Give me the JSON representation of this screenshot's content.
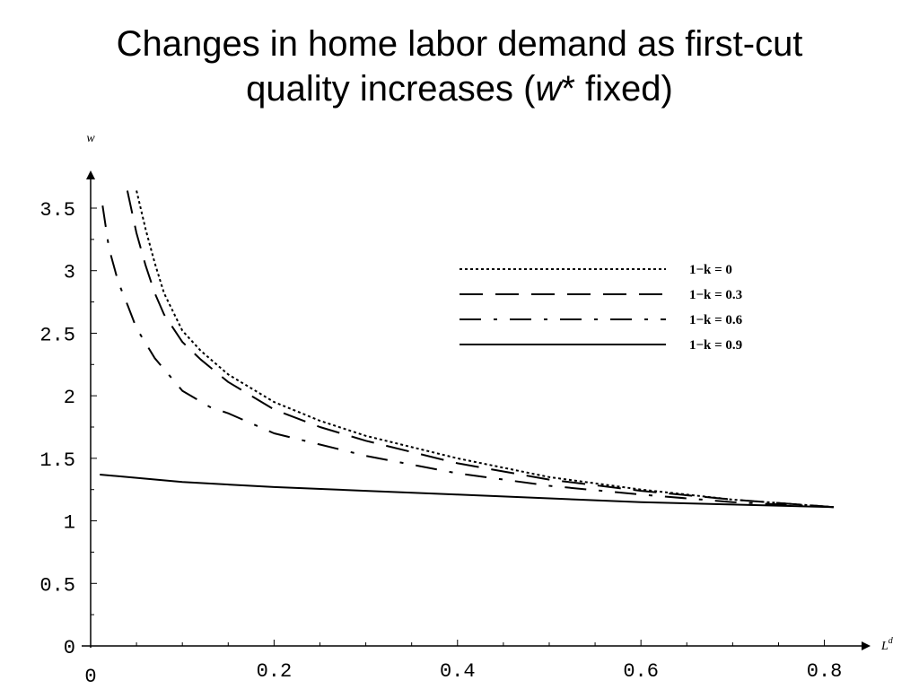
{
  "slide": {
    "title_line1": "Changes in home labor demand as first-cut",
    "title_line2_pre": "quality increases (",
    "title_line2_var": "w",
    "title_line2_post": "* fixed)"
  },
  "chart_data": {
    "type": "line",
    "xlabel": "L",
    "xlabel_sup": "d",
    "ylabel": "w",
    "xlim": [
      0,
      0.82
    ],
    "ylim": [
      0,
      3.7
    ],
    "x_ticks": [
      {
        "value": 0,
        "label": "0"
      },
      {
        "value": 0.2,
        "label": "0.2"
      },
      {
        "value": 0.4,
        "label": "0.4"
      },
      {
        "value": 0.6,
        "label": "0.6"
      },
      {
        "value": 0.8,
        "label": "0.8"
      }
    ],
    "y_ticks": [
      {
        "value": 0,
        "label": "0"
      },
      {
        "value": 0.5,
        "label": "0.5"
      },
      {
        "value": 1,
        "label": "1"
      },
      {
        "value": 1.5,
        "label": "1.5"
      },
      {
        "value": 2,
        "label": "2"
      },
      {
        "value": 2.5,
        "label": "2.5"
      },
      {
        "value": 3,
        "label": "3"
      },
      {
        "value": 3.5,
        "label": "3.5"
      }
    ],
    "grid": false,
    "legend_position": "top-right",
    "series": [
      {
        "name": "1−k = 0",
        "dash": "dotted",
        "x": [
          0.05,
          0.06,
          0.07,
          0.08,
          0.1,
          0.12,
          0.15,
          0.2,
          0.25,
          0.3,
          0.4,
          0.5,
          0.6,
          0.7,
          0.81
        ],
        "y": [
          3.64,
          3.33,
          3.06,
          2.82,
          2.52,
          2.36,
          2.17,
          1.95,
          1.8,
          1.68,
          1.5,
          1.35,
          1.25,
          1.17,
          1.11
        ]
      },
      {
        "name": "1−k = 0.3",
        "dash": "long-dash",
        "x": [
          0.04,
          0.05,
          0.06,
          0.07,
          0.08,
          0.1,
          0.12,
          0.15,
          0.2,
          0.25,
          0.3,
          0.4,
          0.5,
          0.6,
          0.7,
          0.81
        ],
        "y": [
          3.64,
          3.3,
          3.04,
          2.82,
          2.65,
          2.43,
          2.29,
          2.11,
          1.89,
          1.75,
          1.64,
          1.46,
          1.33,
          1.24,
          1.17,
          1.11
        ]
      },
      {
        "name": "1−k = 0.6",
        "dash": "dash-dot",
        "x": [
          0.013,
          0.02,
          0.03,
          0.04,
          0.05,
          0.07,
          0.1,
          0.13,
          0.15,
          0.2,
          0.25,
          0.3,
          0.4,
          0.5,
          0.6,
          0.7,
          0.81
        ],
        "y": [
          3.52,
          3.18,
          2.91,
          2.73,
          2.54,
          2.3,
          2.04,
          1.91,
          1.86,
          1.7,
          1.61,
          1.52,
          1.38,
          1.28,
          1.21,
          1.15,
          1.11
        ]
      },
      {
        "name": "1−k = 0.9",
        "dash": "solid",
        "x": [
          0.01,
          0.1,
          0.2,
          0.3,
          0.4,
          0.5,
          0.6,
          0.7,
          0.81
        ],
        "y": [
          1.37,
          1.31,
          1.27,
          1.24,
          1.21,
          1.18,
          1.15,
          1.13,
          1.11
        ]
      }
    ]
  }
}
